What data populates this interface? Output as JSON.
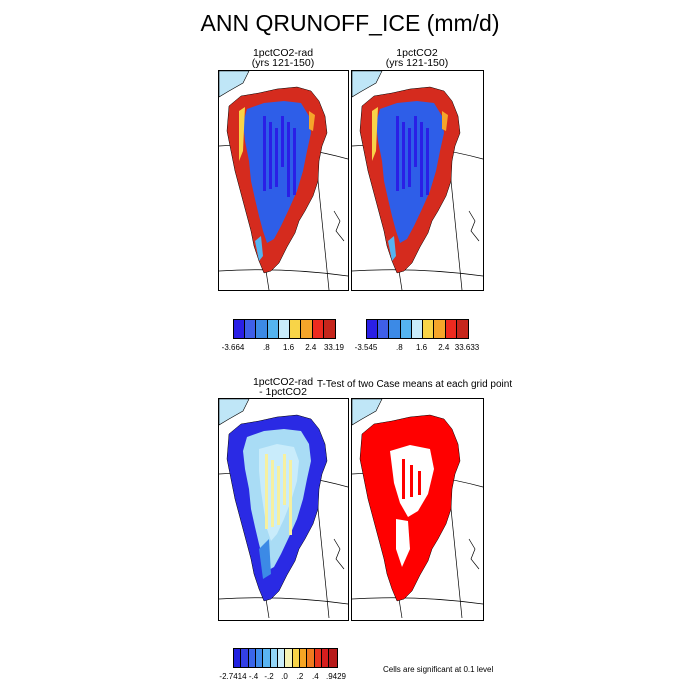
{
  "title": "ANN QRUNOFF_ICE (mm/d)",
  "panels": [
    {
      "title1": "1pctCO2-rad",
      "title2": "(yrs 121-150)"
    },
    {
      "title1": "1pctCO2",
      "title2": "(yrs 121-150)"
    },
    {
      "title1": "1pctCO2-rad",
      "title2": "- 1pctCO2"
    },
    {
      "title1": "T-Test of two Case means at each grid point",
      "title2": ""
    }
  ],
  "colorbars": [
    {
      "labels": [
        "-3.664",
        ".8",
        "1.6",
        "2.4",
        "33.19"
      ],
      "colors": [
        "#2a1fe6",
        "#3f5fe8",
        "#3c8ae6",
        "#55b4f0",
        "#c9ecfb",
        "#f8d448",
        "#f5a52a",
        "#ee2a1f",
        "#c6261c"
      ]
    },
    {
      "labels": [
        "-3.545",
        ".8",
        "1.6",
        "2.4",
        "33.633"
      ],
      "colors": [
        "#2a1fe6",
        "#3f5fe8",
        "#3c8ae6",
        "#55b4f0",
        "#c9ecfb",
        "#f8d448",
        "#f5a52a",
        "#ee2a1f",
        "#c6261c"
      ]
    },
    {
      "labels": [
        "-2.7414",
        "-.4",
        "-.2",
        ".0",
        ".2",
        ".4",
        ".9429"
      ],
      "colors": [
        "#2222e0",
        "#3340e6",
        "#3a66ea",
        "#3f8ded",
        "#5ab5f3",
        "#92d5f7",
        "#cbeefa",
        "#f6f3b4",
        "#f8d448",
        "#f6a524",
        "#f07a1f",
        "#e8361e",
        "#d61e1e",
        "#b81a1a"
      ]
    }
  ],
  "note": "Cells are significant at 0.1 level",
  "colors": {
    "high_red": "#d52b1e",
    "low_blue": "#2e5ee8",
    "sig_red": "#ff0000",
    "light_yellow": "#f6f0a0",
    "light_blue": "#bfe6f7"
  }
}
